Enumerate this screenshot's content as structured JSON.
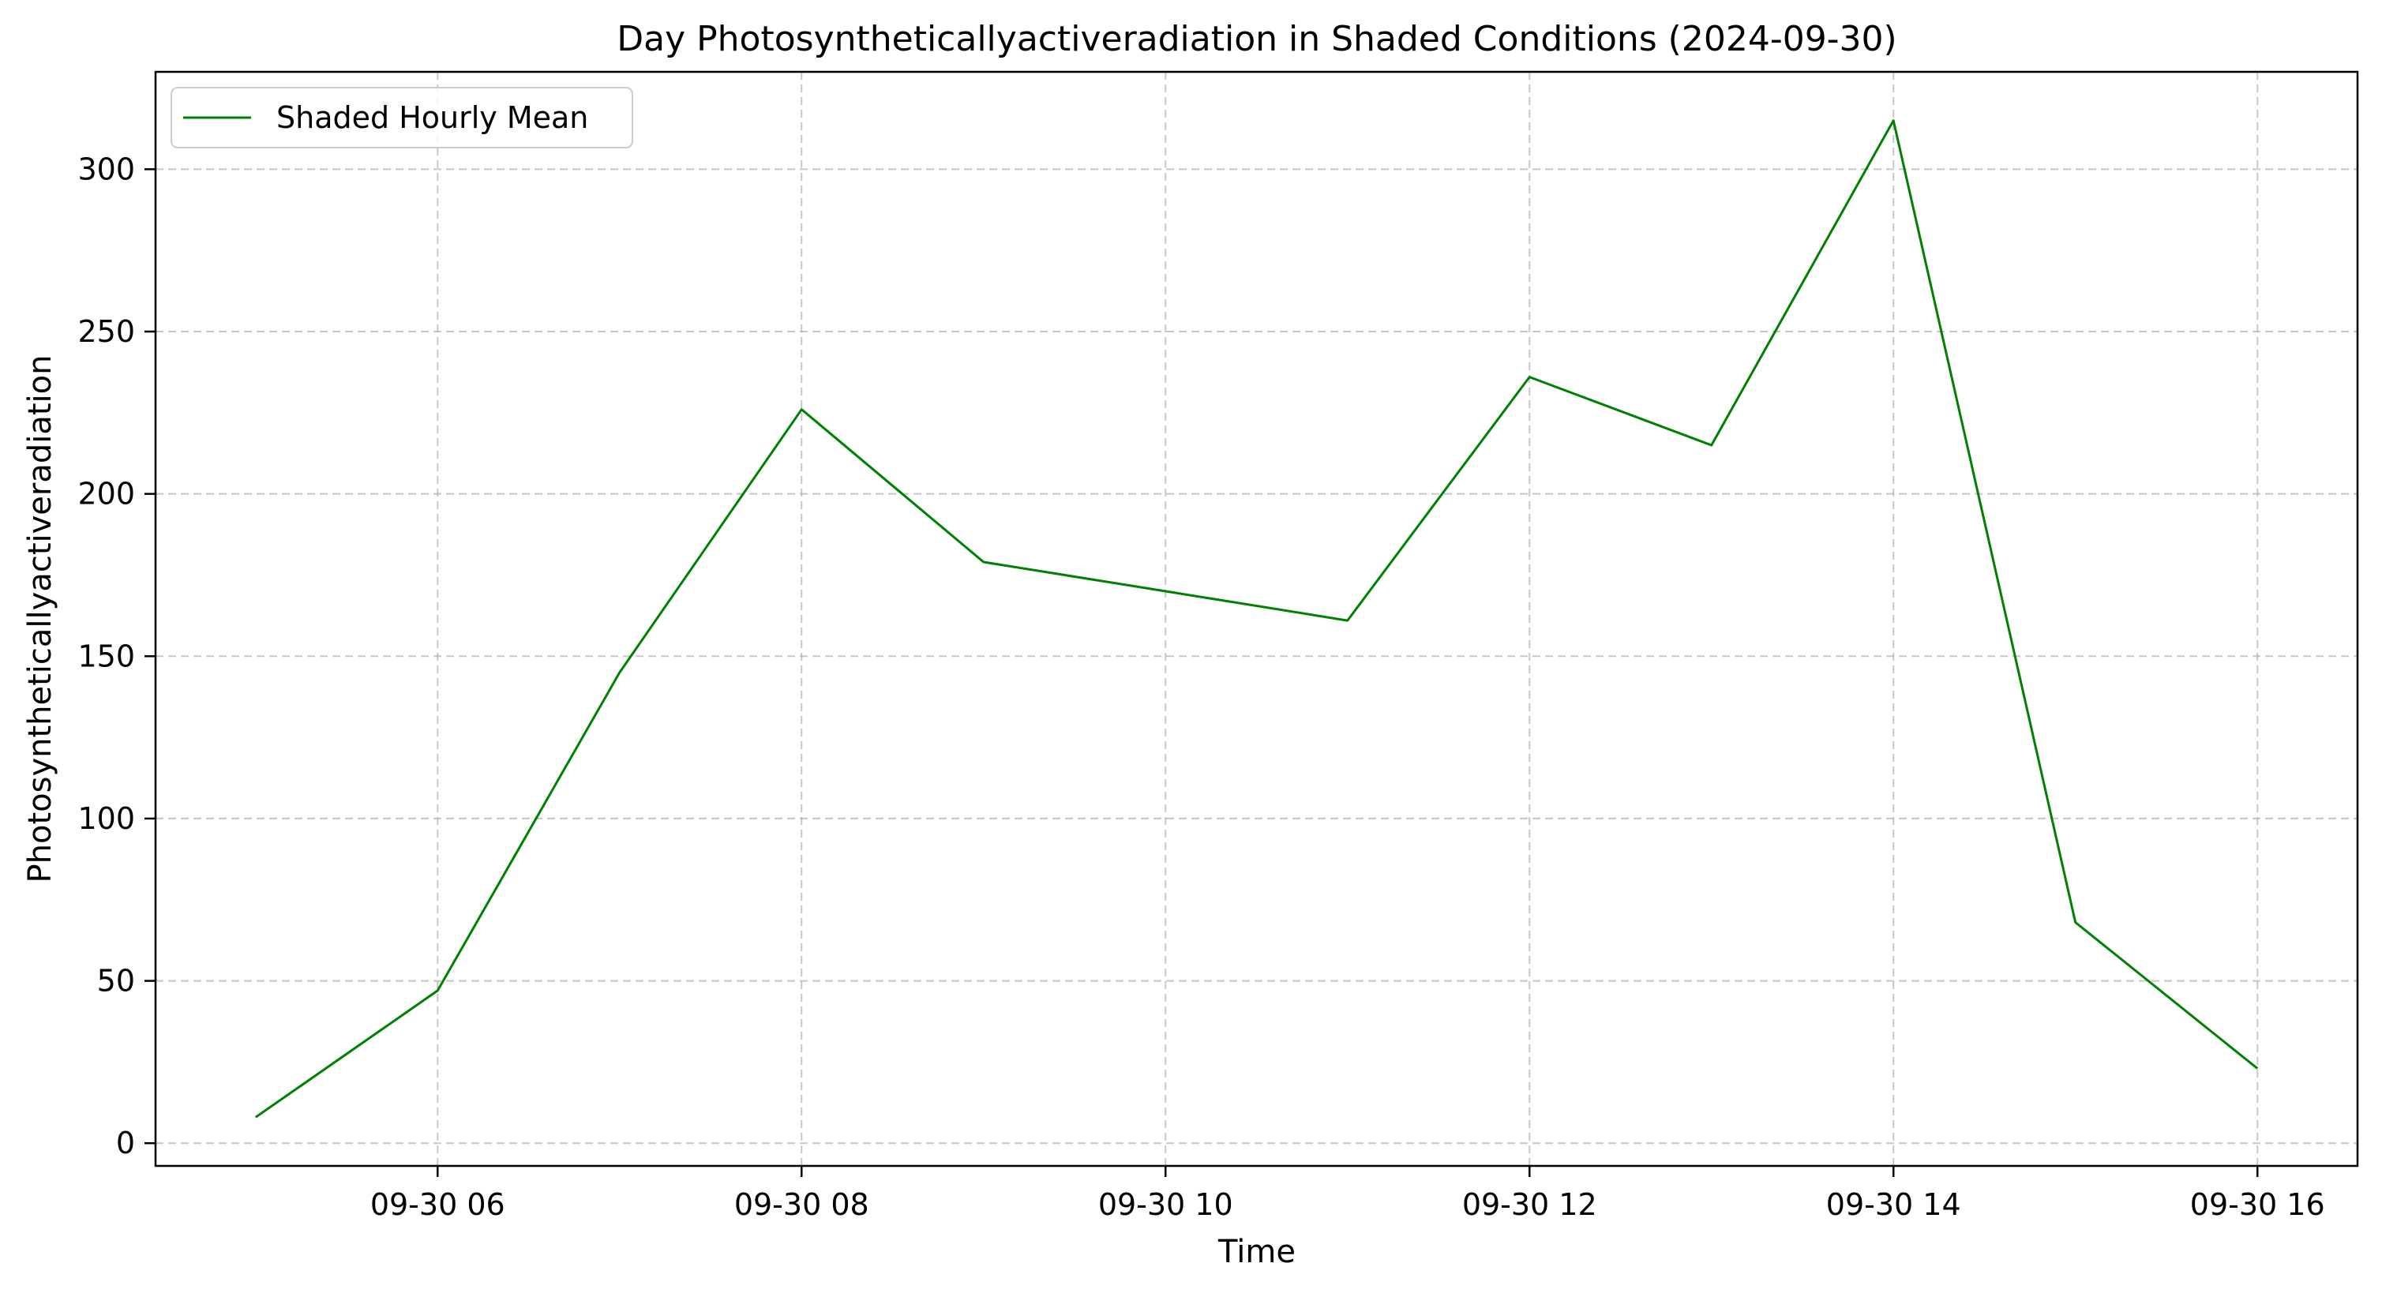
{
  "chart_data": {
    "type": "line",
    "title": "Day Photosyntheticallyactiveradiation in Shaded Conditions (2024-09-30)",
    "xlabel": "Time",
    "ylabel": "Photosyntheticallyactiveradiation",
    "x": [
      "2024-09-30 05:00",
      "2024-09-30 06:00",
      "2024-09-30 07:00",
      "2024-09-30 08:00",
      "2024-09-30 09:00",
      "2024-09-30 10:00",
      "2024-09-30 11:00",
      "2024-09-30 12:00",
      "2024-09-30 13:00",
      "2024-09-30 14:00",
      "2024-09-30 15:00",
      "2024-09-30 16:00"
    ],
    "series": [
      {
        "name": "Shaded Hourly Mean",
        "color": "#008000",
        "values": [
          8,
          47,
          145,
          226,
          179,
          170,
          161,
          236,
          215,
          315,
          68,
          23
        ]
      }
    ],
    "xlim": [
      "2024-09-30 04:27",
      "2024-09-30 16:33"
    ],
    "ylim": [
      -7,
      330
    ],
    "x_ticks": [
      {
        "value": "2024-09-30 06:00",
        "label": "09-30 06"
      },
      {
        "value": "2024-09-30 08:00",
        "label": "09-30 08"
      },
      {
        "value": "2024-09-30 10:00",
        "label": "09-30 10"
      },
      {
        "value": "2024-09-30 12:00",
        "label": "09-30 12"
      },
      {
        "value": "2024-09-30 14:00",
        "label": "09-30 14"
      },
      {
        "value": "2024-09-30 16:00",
        "label": "09-30 16"
      }
    ],
    "y_ticks": [
      0,
      50,
      100,
      150,
      200,
      250,
      300
    ],
    "grid": true,
    "legend_position": "upper-left"
  }
}
